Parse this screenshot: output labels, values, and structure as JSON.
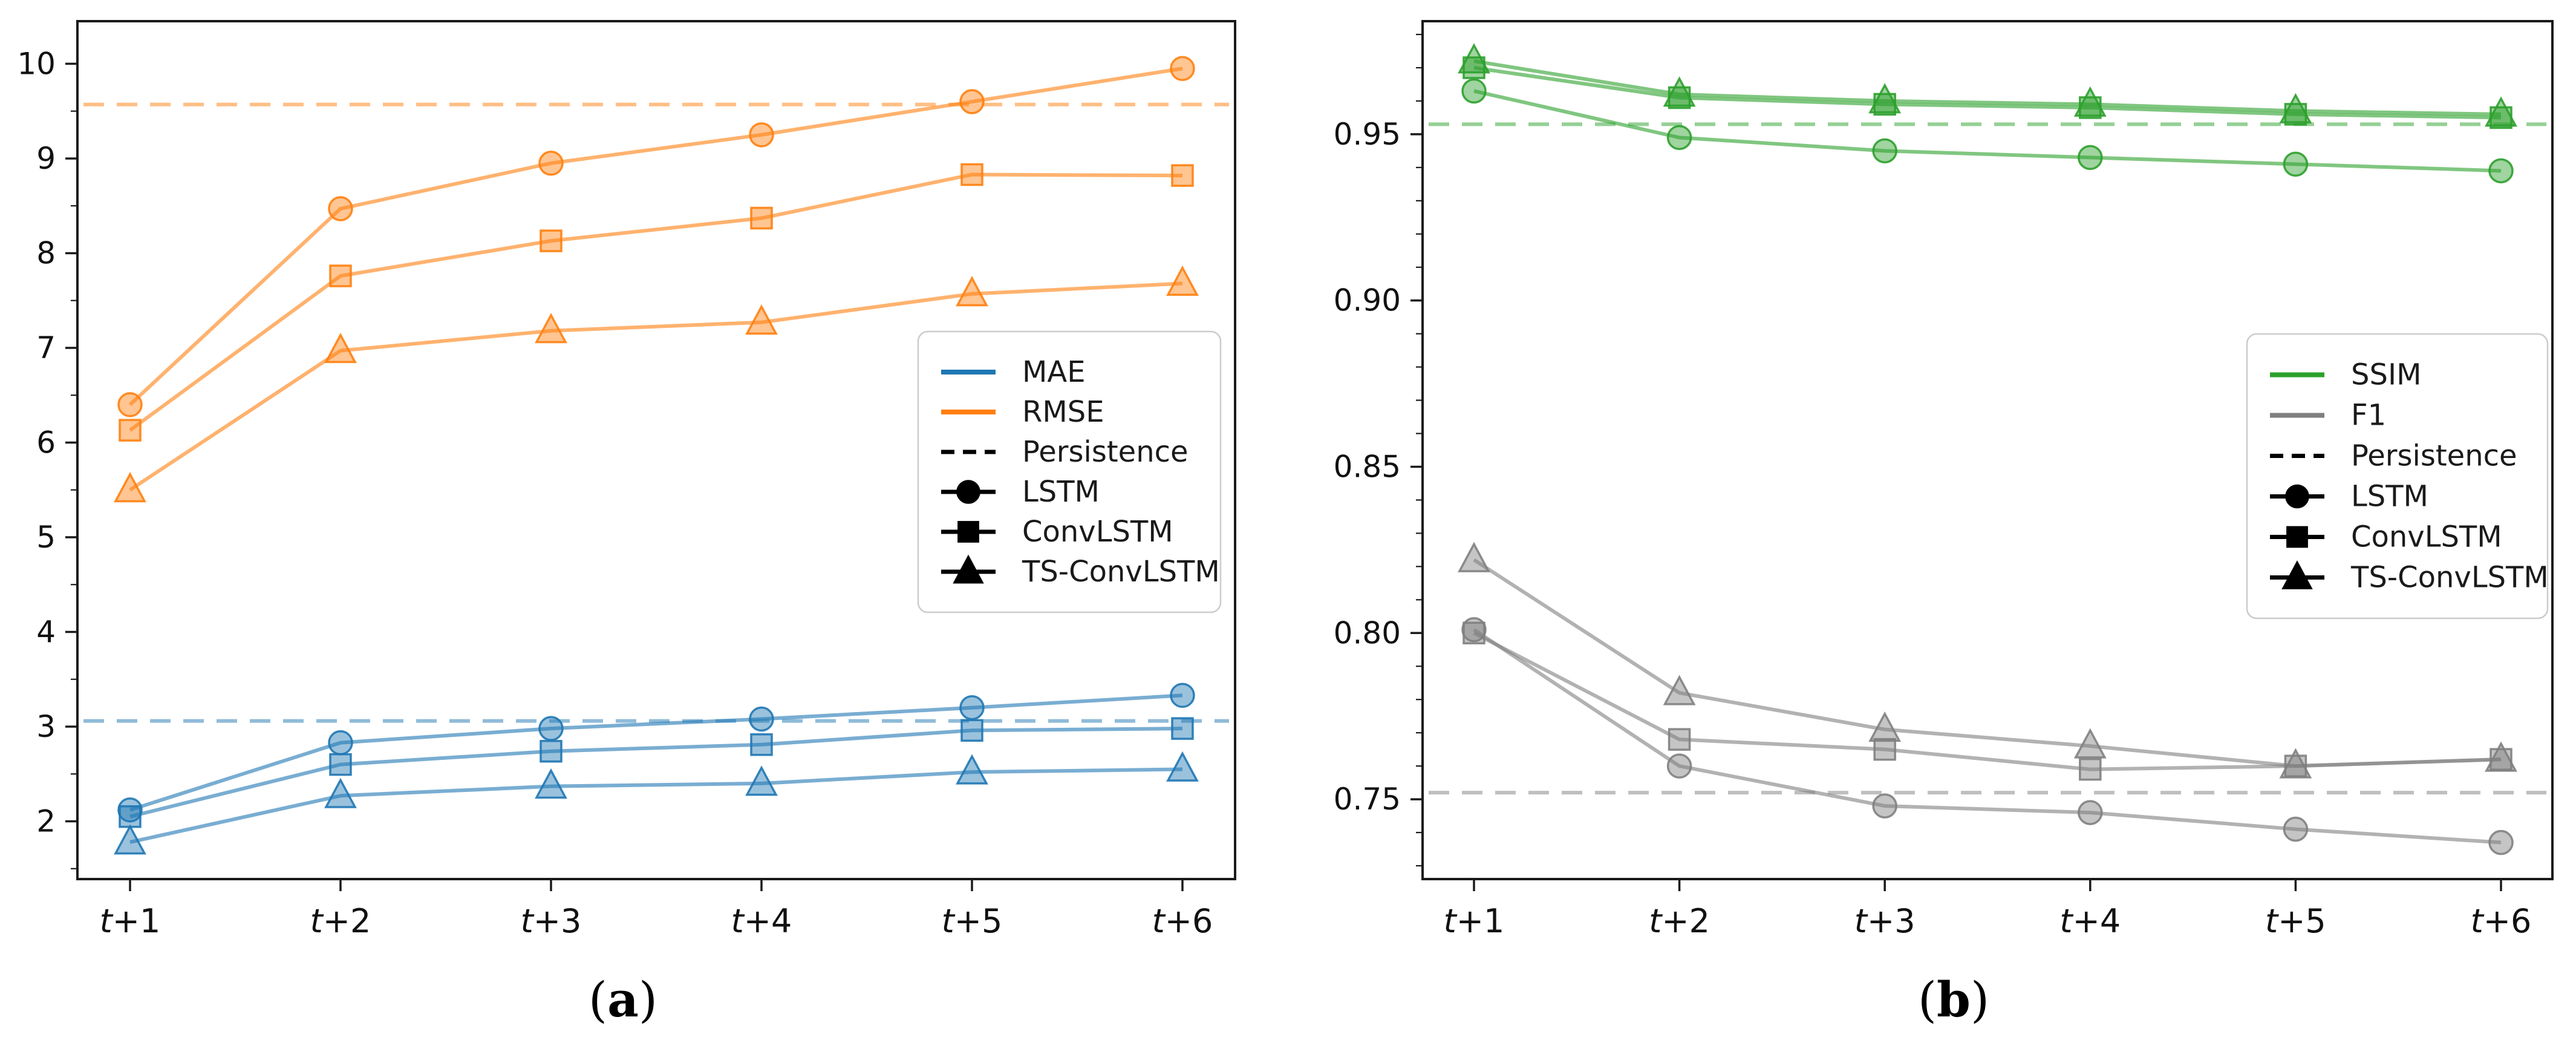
{
  "page": {
    "background": "#ffffff"
  },
  "captions": {
    "a": {
      "open": "(",
      "letter": "a",
      "close": ")"
    },
    "b": {
      "open": "(",
      "letter": "b",
      "close": ")"
    }
  },
  "colors": {
    "mae_blue": "#1f77b4",
    "rmse_orange": "#ff7f0e",
    "ssim_green": "#2ca02c",
    "f1_gray": "#7f7f7f",
    "legend_black": "#000000",
    "spine": "#1a1a1a",
    "legend_border": "#cccccc"
  },
  "chart_data": [
    {
      "type": "line",
      "panel": "a",
      "x_tick_labels": [
        "t+1",
        "t+2",
        "t+3",
        "t+4",
        "t+5",
        "t+6"
      ],
      "y_ticks": [
        2,
        3,
        4,
        5,
        6,
        7,
        8,
        9,
        10
      ],
      "y_tick_labels": [
        "2",
        "3",
        "4",
        "5",
        "6",
        "7",
        "8",
        "9",
        "10"
      ],
      "y_minor_step": 0.5,
      "ylim": [
        1.39,
        10.45
      ],
      "grid": false,
      "legend_position": "center-right",
      "legend": [
        {
          "label": "MAE",
          "swatch": "line",
          "color": "#1f77b4"
        },
        {
          "label": "RMSE",
          "swatch": "line",
          "color": "#ff7f0e"
        },
        {
          "label": "Persistence",
          "swatch": "dashed-line",
          "color": "#000000"
        },
        {
          "label": "LSTM",
          "swatch": "line-circle",
          "color": "#000000"
        },
        {
          "label": "ConvLSTM",
          "swatch": "line-square",
          "color": "#000000"
        },
        {
          "label": "TS-ConvLSTM",
          "swatch": "line-triangle",
          "color": "#000000"
        }
      ],
      "series": [
        {
          "metric": "MAE",
          "model": "LSTM",
          "marker": "circle",
          "color": "#1f77b4",
          "values": [
            2.12,
            2.83,
            2.98,
            3.08,
            3.2,
            3.33
          ]
        },
        {
          "metric": "MAE",
          "model": "ConvLSTM",
          "marker": "square",
          "color": "#1f77b4",
          "values": [
            2.05,
            2.6,
            2.74,
            2.81,
            2.96,
            2.98
          ]
        },
        {
          "metric": "MAE",
          "model": "TS-ConvLSTM",
          "marker": "triangle",
          "color": "#1f77b4",
          "values": [
            1.78,
            2.27,
            2.37,
            2.4,
            2.52,
            2.55
          ]
        },
        {
          "metric": "RMSE",
          "model": "LSTM",
          "marker": "circle",
          "color": "#ff7f0e",
          "values": [
            6.4,
            8.47,
            8.95,
            9.25,
            9.6,
            9.95
          ]
        },
        {
          "metric": "RMSE",
          "model": "ConvLSTM",
          "marker": "square",
          "color": "#ff7f0e",
          "values": [
            6.13,
            7.76,
            8.13,
            8.37,
            8.83,
            8.82
          ]
        },
        {
          "metric": "RMSE",
          "model": "TS-ConvLSTM",
          "marker": "triangle",
          "color": "#ff7f0e",
          "values": [
            5.5,
            6.97,
            7.18,
            7.27,
            7.57,
            7.68
          ]
        }
      ],
      "persistence_lines": [
        {
          "metric": "MAE",
          "value": 3.06,
          "color": "#1f77b4"
        },
        {
          "metric": "RMSE",
          "value": 9.57,
          "color": "#ff7f0e"
        }
      ]
    },
    {
      "type": "line",
      "panel": "b",
      "x_tick_labels": [
        "t+1",
        "t+2",
        "t+3",
        "t+4",
        "t+5",
        "t+6"
      ],
      "y_ticks": [
        0.75,
        0.8,
        0.85,
        0.9,
        0.95
      ],
      "y_tick_labels": [
        "0.75",
        "0.80",
        "0.85",
        "0.90",
        "0.95"
      ],
      "y_minor_step": 0.01,
      "ylim": [
        0.726,
        0.984
      ],
      "grid": false,
      "legend_position": "center-right",
      "legend": [
        {
          "label": "SSIM",
          "swatch": "line",
          "color": "#2ca02c"
        },
        {
          "label": "F1",
          "swatch": "line",
          "color": "#7f7f7f"
        },
        {
          "label": "Persistence",
          "swatch": "dashed-line",
          "color": "#000000"
        },
        {
          "label": "LSTM",
          "swatch": "line-circle",
          "color": "#000000"
        },
        {
          "label": "ConvLSTM",
          "swatch": "line-square",
          "color": "#000000"
        },
        {
          "label": "TS-ConvLSTM",
          "swatch": "line-triangle",
          "color": "#000000"
        }
      ],
      "series": [
        {
          "metric": "SSIM",
          "model": "LSTM",
          "marker": "circle",
          "color": "#2ca02c",
          "values": [
            0.963,
            0.949,
            0.945,
            0.943,
            0.941,
            0.939
          ]
        },
        {
          "metric": "SSIM",
          "model": "ConvLSTM",
          "marker": "square",
          "color": "#2ca02c",
          "values": [
            0.97,
            0.961,
            0.959,
            0.958,
            0.956,
            0.955
          ]
        },
        {
          "metric": "SSIM",
          "model": "TS-ConvLSTM",
          "marker": "triangle",
          "color": "#2ca02c",
          "values": [
            0.972,
            0.962,
            0.96,
            0.959,
            0.957,
            0.956
          ]
        },
        {
          "metric": "F1",
          "model": "LSTM",
          "marker": "circle",
          "color": "#7f7f7f",
          "values": [
            0.801,
            0.76,
            0.748,
            0.746,
            0.741,
            0.737
          ]
        },
        {
          "metric": "F1",
          "model": "ConvLSTM",
          "marker": "square",
          "color": "#7f7f7f",
          "values": [
            0.8,
            0.768,
            0.765,
            0.759,
            0.76,
            0.762
          ]
        },
        {
          "metric": "F1",
          "model": "TS-ConvLSTM",
          "marker": "triangle",
          "color": "#7f7f7f",
          "values": [
            0.822,
            0.782,
            0.771,
            0.766,
            0.76,
            0.762
          ]
        }
      ],
      "persistence_lines": [
        {
          "metric": "SSIM",
          "value": 0.953,
          "color": "#2ca02c"
        },
        {
          "metric": "F1",
          "value": 0.752,
          "color": "#7f7f7f"
        }
      ]
    }
  ]
}
